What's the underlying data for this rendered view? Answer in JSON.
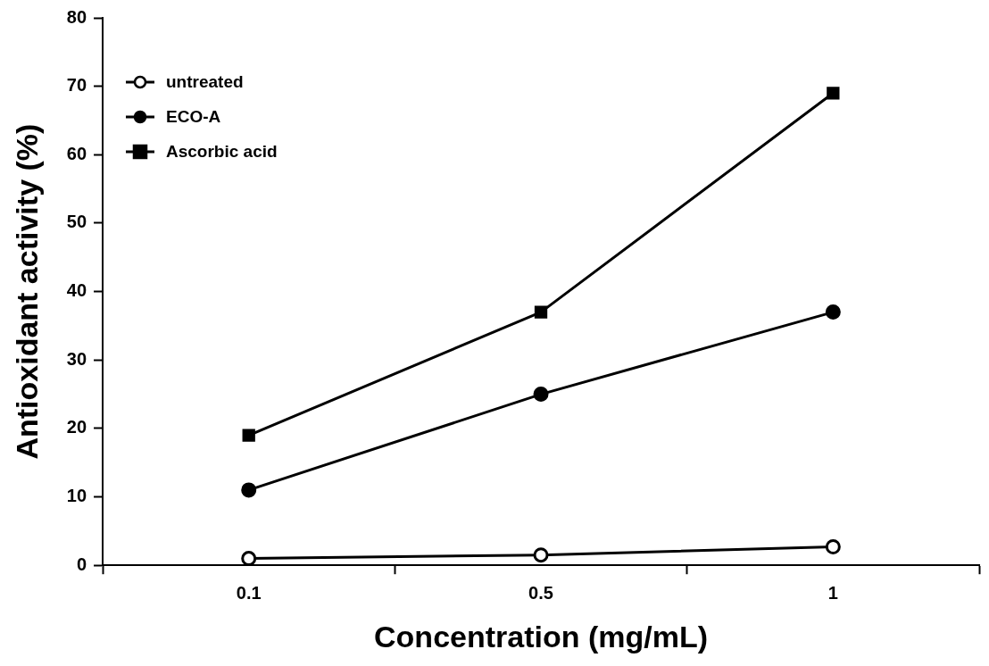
{
  "chart_data": {
    "type": "line",
    "xlabel": "Concentration (mg/mL)",
    "ylabel": "Antioxidant activity (%)",
    "categories": [
      "0.1",
      "0.5",
      "1"
    ],
    "series": [
      {
        "name": "untreated",
        "color": "#000000",
        "marker": "circle",
        "values": [
          1,
          1.5,
          2.7
        ]
      },
      {
        "name": "ECO-A",
        "color": "#000000",
        "marker": "circle",
        "values": [
          11,
          25,
          37
        ]
      },
      {
        "name": "Ascorbic acid",
        "color": "#000000",
        "marker": "square",
        "values": [
          19,
          37,
          69
        ]
      }
    ],
    "ylim": [
      0,
      80
    ],
    "yticks": [
      0,
      10,
      20,
      30,
      40,
      50,
      60,
      70,
      80
    ],
    "grid": false,
    "legend": "top left",
    "line_style": "solid"
  }
}
